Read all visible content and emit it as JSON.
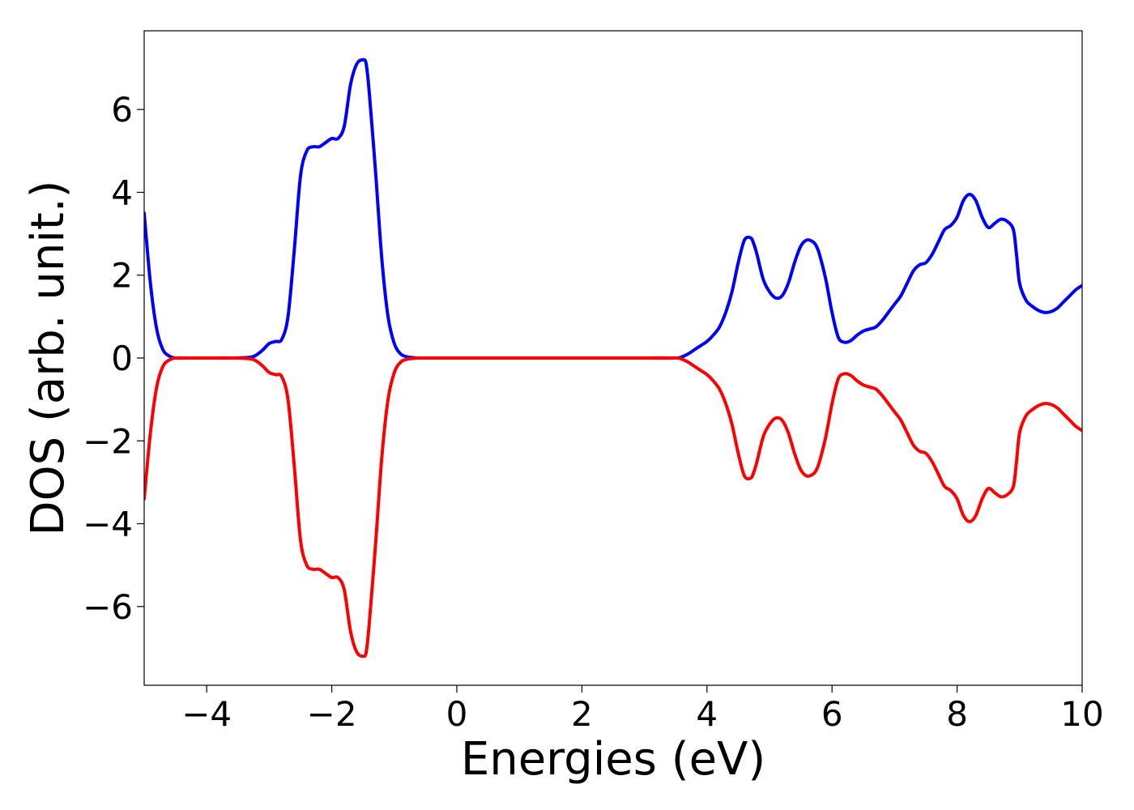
{
  "chart_data": {
    "type": "line",
    "title": "",
    "xlabel": "Energies (eV)",
    "ylabel": "DOS (arb. unit.)",
    "xlim": [
      -5,
      10
    ],
    "ylim": [
      -7.9,
      7.9
    ],
    "xticks": [
      -4,
      -2,
      0,
      2,
      4,
      6,
      8,
      10
    ],
    "yticks": [
      -6,
      -4,
      -2,
      0,
      2,
      4,
      6
    ],
    "xtick_labels": [
      "−4",
      "−2",
      "0",
      "2",
      "4",
      "6",
      "8",
      "10"
    ],
    "ytick_labels": [
      "−6",
      "−4",
      "−2",
      "0",
      "2",
      "4",
      "6"
    ],
    "grid": false,
    "legend": "none",
    "series": [
      {
        "color": "#0000ff",
        "x": [
          -5.0,
          -4.9,
          -4.8,
          -4.7,
          -4.6,
          -4.5,
          -4.3,
          -4.0,
          -3.6,
          -3.3,
          -3.2,
          -3.1,
          -3.0,
          -2.9,
          -2.8,
          -2.7,
          -2.6,
          -2.5,
          -2.4,
          -2.3,
          -2.2,
          -2.1,
          -2.0,
          -1.9,
          -1.8,
          -1.7,
          -1.6,
          -1.5,
          -1.45,
          -1.4,
          -1.3,
          -1.2,
          -1.1,
          -1.0,
          -0.9,
          -0.8,
          -0.7,
          -0.6,
          -0.5,
          0.0,
          1.0,
          2.0,
          3.0,
          3.5,
          3.6,
          3.7,
          3.8,
          3.9,
          4.0,
          4.1,
          4.2,
          4.3,
          4.4,
          4.5,
          4.6,
          4.7,
          4.75,
          4.8,
          4.9,
          5.0,
          5.1,
          5.2,
          5.3,
          5.4,
          5.5,
          5.6,
          5.7,
          5.75,
          5.8,
          5.9,
          6.0,
          6.1,
          6.2,
          6.3,
          6.4,
          6.5,
          6.6,
          6.7,
          6.8,
          6.9,
          7.0,
          7.1,
          7.2,
          7.3,
          7.4,
          7.5,
          7.6,
          7.7,
          7.8,
          7.9,
          8.0,
          8.1,
          8.2,
          8.3,
          8.4,
          8.5,
          8.6,
          8.7,
          8.8,
          8.9,
          8.95,
          9.0,
          9.1,
          9.2,
          9.3,
          9.4,
          9.5,
          9.6,
          9.7,
          9.8,
          9.9,
          10.0
        ],
        "y": [
          3.5,
          1.8,
          0.7,
          0.2,
          0.05,
          0.0,
          0.0,
          0.0,
          0.0,
          0.02,
          0.08,
          0.2,
          0.35,
          0.4,
          0.45,
          1.0,
          2.6,
          4.4,
          5.0,
          5.1,
          5.1,
          5.2,
          5.3,
          5.3,
          5.6,
          6.6,
          7.1,
          7.2,
          7.1,
          6.4,
          4.5,
          2.4,
          1.0,
          0.35,
          0.1,
          0.03,
          0.01,
          0.0,
          0.0,
          0.0,
          0.0,
          0.0,
          0.0,
          0.0,
          0.03,
          0.1,
          0.2,
          0.3,
          0.4,
          0.55,
          0.75,
          1.1,
          1.6,
          2.3,
          2.85,
          2.9,
          2.75,
          2.5,
          1.9,
          1.6,
          1.45,
          1.5,
          1.8,
          2.3,
          2.7,
          2.85,
          2.8,
          2.7,
          2.5,
          1.9,
          1.1,
          0.5,
          0.38,
          0.42,
          0.55,
          0.65,
          0.7,
          0.75,
          0.9,
          1.1,
          1.3,
          1.5,
          1.8,
          2.1,
          2.25,
          2.3,
          2.5,
          2.8,
          3.1,
          3.2,
          3.4,
          3.8,
          3.95,
          3.8,
          3.4,
          3.15,
          3.25,
          3.35,
          3.3,
          3.1,
          2.5,
          1.8,
          1.4,
          1.25,
          1.15,
          1.1,
          1.12,
          1.2,
          1.35,
          1.5,
          1.65,
          1.75
        ]
      },
      {
        "color": "#ff0000",
        "x": [
          -5.0,
          -4.9,
          -4.8,
          -4.7,
          -4.6,
          -4.5,
          -4.3,
          -4.0,
          -3.6,
          -3.3,
          -3.2,
          -3.1,
          -3.0,
          -2.9,
          -2.8,
          -2.7,
          -2.6,
          -2.5,
          -2.4,
          -2.3,
          -2.2,
          -2.1,
          -2.0,
          -1.9,
          -1.8,
          -1.7,
          -1.6,
          -1.5,
          -1.45,
          -1.4,
          -1.3,
          -1.2,
          -1.1,
          -1.0,
          -0.9,
          -0.8,
          -0.7,
          -0.6,
          -0.5,
          0.0,
          1.0,
          2.0,
          3.0,
          3.5,
          3.6,
          3.7,
          3.8,
          3.9,
          4.0,
          4.1,
          4.2,
          4.3,
          4.4,
          4.5,
          4.6,
          4.7,
          4.75,
          4.8,
          4.9,
          5.0,
          5.1,
          5.2,
          5.3,
          5.4,
          5.5,
          5.6,
          5.7,
          5.75,
          5.8,
          5.9,
          6.0,
          6.1,
          6.2,
          6.3,
          6.4,
          6.5,
          6.6,
          6.7,
          6.8,
          6.9,
          7.0,
          7.1,
          7.2,
          7.3,
          7.4,
          7.5,
          7.6,
          7.7,
          7.8,
          7.9,
          8.0,
          8.1,
          8.2,
          8.3,
          8.4,
          8.5,
          8.6,
          8.7,
          8.8,
          8.9,
          8.95,
          9.0,
          9.1,
          9.2,
          9.3,
          9.4,
          9.5,
          9.6,
          9.7,
          9.8,
          9.9,
          10.0
        ],
        "y": [
          -3.4,
          -1.8,
          -0.7,
          -0.2,
          -0.05,
          0.0,
          0.0,
          0.0,
          0.0,
          -0.02,
          -0.08,
          -0.2,
          -0.35,
          -0.4,
          -0.45,
          -1.0,
          -2.6,
          -4.4,
          -5.0,
          -5.1,
          -5.1,
          -5.2,
          -5.3,
          -5.3,
          -5.6,
          -6.6,
          -7.1,
          -7.2,
          -7.1,
          -6.4,
          -4.5,
          -2.4,
          -1.0,
          -0.35,
          -0.1,
          -0.03,
          -0.01,
          0.0,
          0.0,
          0.0,
          0.0,
          0.0,
          0.0,
          0.0,
          -0.03,
          -0.1,
          -0.2,
          -0.3,
          -0.4,
          -0.55,
          -0.75,
          -1.1,
          -1.6,
          -2.3,
          -2.85,
          -2.9,
          -2.75,
          -2.5,
          -1.9,
          -1.6,
          -1.45,
          -1.5,
          -1.8,
          -2.3,
          -2.7,
          -2.85,
          -2.8,
          -2.7,
          -2.5,
          -1.9,
          -1.1,
          -0.5,
          -0.38,
          -0.42,
          -0.55,
          -0.65,
          -0.7,
          -0.75,
          -0.9,
          -1.1,
          -1.3,
          -1.5,
          -1.8,
          -2.1,
          -2.25,
          -2.3,
          -2.5,
          -2.8,
          -3.1,
          -3.2,
          -3.4,
          -3.8,
          -3.95,
          -3.8,
          -3.4,
          -3.15,
          -3.25,
          -3.35,
          -3.3,
          -3.1,
          -2.5,
          -1.8,
          -1.4,
          -1.25,
          -1.15,
          -1.1,
          -1.12,
          -1.2,
          -1.35,
          -1.5,
          -1.65,
          -1.75
        ]
      }
    ]
  }
}
